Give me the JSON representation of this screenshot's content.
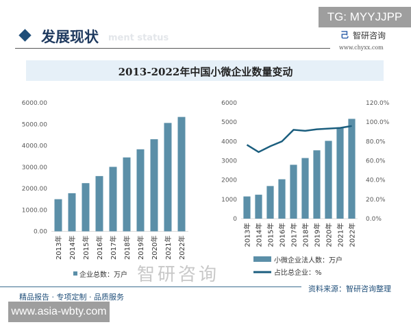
{
  "watermark_tg": "TG: MYYJJPP",
  "header": {
    "title": "发展现状",
    "subtitle": "ment status",
    "logo_name": "智研咨询",
    "logo_url": "www.chyxx.com"
  },
  "colors": {
    "bar": "#5b8fa8",
    "line": "#1b5e7e",
    "axis_text": "#595959"
  },
  "chart_data": [
    {
      "type": "bar",
      "title": "2013-2022年中国小微企业数量变动",
      "categories": [
        "2013年",
        "2014年",
        "2015年",
        "2016年",
        "2017年",
        "2018年",
        "2019年",
        "2020年",
        "2021年",
        "2022年"
      ],
      "series": [
        {
          "name": "企业总数：万户",
          "values": [
            1500,
            1780,
            2250,
            2580,
            3010,
            3450,
            3830,
            4300,
            5060,
            5340
          ]
        }
      ],
      "ylim": [
        0,
        6000
      ],
      "yticks": [
        "0.00",
        "1000.00",
        "2000.00",
        "3000.00",
        "4000.00",
        "5000.00",
        "6000.00"
      ],
      "grid": false,
      "legend": "bottom"
    },
    {
      "type": "bar+line",
      "categories": [
        "2013年",
        "2014年",
        "2015年",
        "2016年",
        "2017年",
        "2018年",
        "2019年",
        "2020年",
        "2021年",
        "2022年"
      ],
      "series": [
        {
          "name": "小微企业法人数：万户",
          "type": "bar",
          "axis": "left",
          "values": [
            1150,
            1240,
            1690,
            2040,
            2790,
            3140,
            3540,
            4030,
            4700,
            5170
          ]
        },
        {
          "name": "占比总企业：%",
          "type": "line",
          "axis": "right",
          "values": [
            76.5,
            69,
            75,
            80,
            92,
            91,
            92.6,
            93.3,
            94,
            96
          ]
        }
      ],
      "ylim": [
        0,
        6000
      ],
      "yticks": [
        "0",
        "1000",
        "2000",
        "3000",
        "4000",
        "5000",
        "6000"
      ],
      "y2lim": [
        0,
        120
      ],
      "y2ticks": [
        "0.0%",
        "20.0%",
        "40.0%",
        "60.0%",
        "80.0%",
        "100.0%",
        "120.0%"
      ],
      "grid": false,
      "legend": "bottom"
    }
  ],
  "footer": {
    "source": "资料来源：智研咨询整理",
    "slogan": "精品报告 · 专项定制 · 品质服务",
    "url_watermark": "www.asia-wbty.com",
    "brand_watermark": "智研咨询"
  }
}
